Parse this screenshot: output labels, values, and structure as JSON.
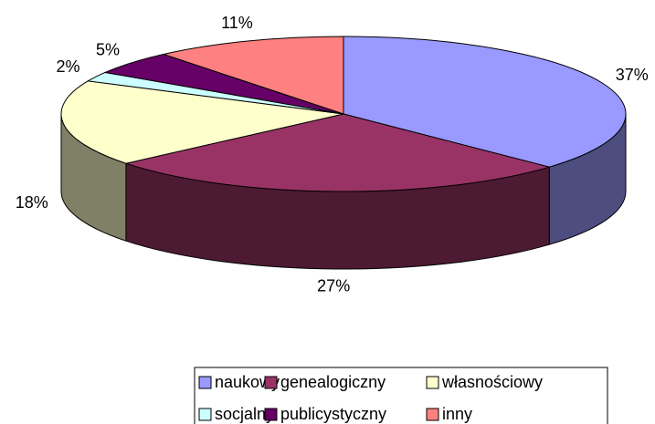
{
  "chart_data": {
    "type": "pie3d",
    "categories": [
      "naukowy",
      "genealogiczny",
      "własnościowy",
      "socjalny",
      "publicystyczny",
      "inny"
    ],
    "values": [
      37,
      27,
      18,
      2,
      5,
      11
    ],
    "value_labels": [
      "37%",
      "27%",
      "18%",
      "2%",
      "5%",
      "11%"
    ],
    "colors": [
      "#9999ff",
      "#993366",
      "#ffffcc",
      "#ccffff",
      "#660066",
      "#ff8080"
    ],
    "legend": "bottom"
  }
}
